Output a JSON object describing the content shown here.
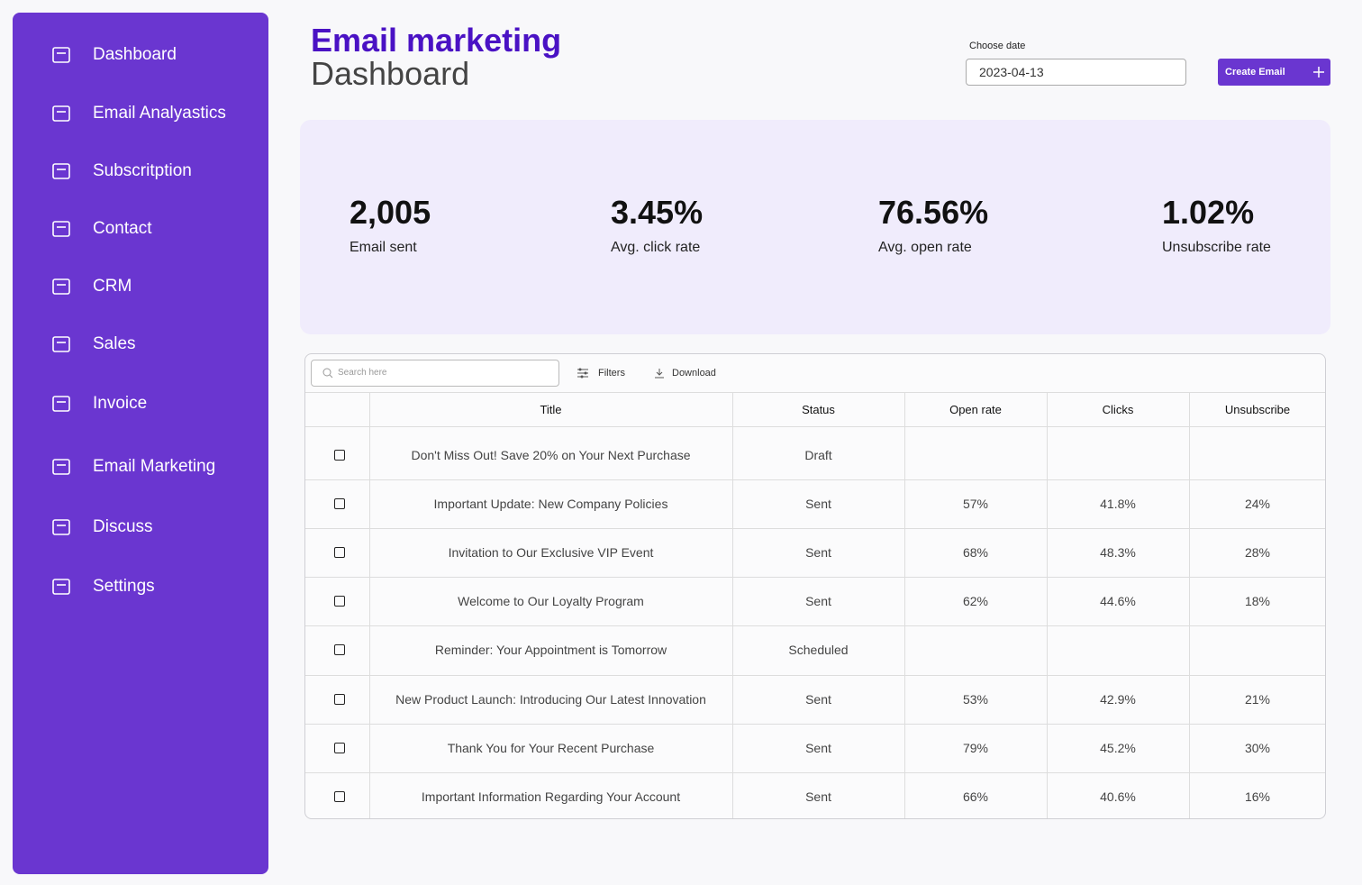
{
  "sidebar": {
    "items": [
      "Dashboard",
      "Email Analyastics",
      "Subscritption",
      "Contact",
      "CRM",
      "Sales",
      "Invoice",
      "Email Marketing",
      "Discuss",
      "Settings"
    ]
  },
  "header": {
    "title": "Email marketing",
    "subtitle": "Dashboard",
    "date_label": "Choose date",
    "date_value": "2023-04-13",
    "create_button": "Create Email"
  },
  "stats": [
    {
      "value": "2,005",
      "label": "Email sent"
    },
    {
      "value": "3.45%",
      "label": "Avg. click rate"
    },
    {
      "value": "76.56%",
      "label": "Avg. open rate"
    },
    {
      "value": "1.02%",
      "label": "Unsubscribe rate"
    }
  ],
  "toolbar": {
    "search_placeholder": "Search here",
    "filters": "Filters",
    "download": "Download"
  },
  "table": {
    "columns": [
      "Title",
      "Status",
      "Open rate",
      "Clicks",
      "Unsubscribe"
    ],
    "rows": [
      [
        "Don't Miss Out! Save 20% on Your Next Purchase",
        "Draft",
        null,
        null,
        null
      ],
      [
        "Important Update: New Company Policies",
        "Sent",
        "57%",
        "41.8%",
        "24%"
      ],
      [
        "Invitation to Our Exclusive VIP Event",
        "Sent",
        "68%",
        "48.3%",
        "28%"
      ],
      [
        "Welcome to Our Loyalty Program",
        "Sent",
        "62%",
        "44.6%",
        "18%"
      ],
      [
        "Reminder: Your Appointment is Tomorrow",
        "Scheduled",
        null,
        null,
        null
      ],
      [
        "New Product Launch: Introducing Our Latest Innovation",
        "Sent",
        "53%",
        "42.9%",
        "21%"
      ],
      [
        "Thank You for Your Recent Purchase",
        "Sent",
        "79%",
        "45.2%",
        "30%"
      ],
      [
        "Important Information Regarding Your Account",
        "Sent",
        "66%",
        "40.6%",
        "16%"
      ]
    ]
  }
}
